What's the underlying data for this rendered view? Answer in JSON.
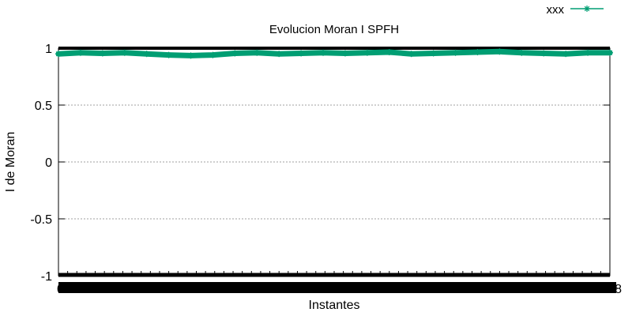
{
  "chart_data": {
    "type": "line",
    "title": "Evolucion Moran I SPFH",
    "xlabel": "Instantes",
    "ylabel": "I de Moran",
    "ylim": [
      -1,
      1
    ],
    "yticks": [
      "1",
      "0.5",
      "0",
      "-0.5",
      "-1"
    ],
    "ytick_values": [
      1,
      0.5,
      0,
      -0.5,
      -1
    ],
    "xlim": [
      0,
      100
    ],
    "xtick_first": "0",
    "xtick_last": "8",
    "grid": true,
    "legend_position": "top-right",
    "series": [
      {
        "name": "xxx",
        "color": "#009e73",
        "marker": "asterisk",
        "x": [
          0,
          4,
          8,
          12,
          16,
          20,
          24,
          28,
          32,
          36,
          40,
          44,
          48,
          52,
          56,
          60,
          64,
          68,
          72,
          76,
          80,
          84,
          88,
          92,
          96,
          100
        ],
        "y": [
          0.95,
          0.96,
          0.955,
          0.96,
          0.95,
          0.94,
          0.935,
          0.94,
          0.955,
          0.96,
          0.95,
          0.955,
          0.96,
          0.955,
          0.96,
          0.965,
          0.95,
          0.955,
          0.96,
          0.965,
          0.97,
          0.96,
          0.955,
          0.95,
          0.96,
          0.96
        ]
      }
    ]
  }
}
